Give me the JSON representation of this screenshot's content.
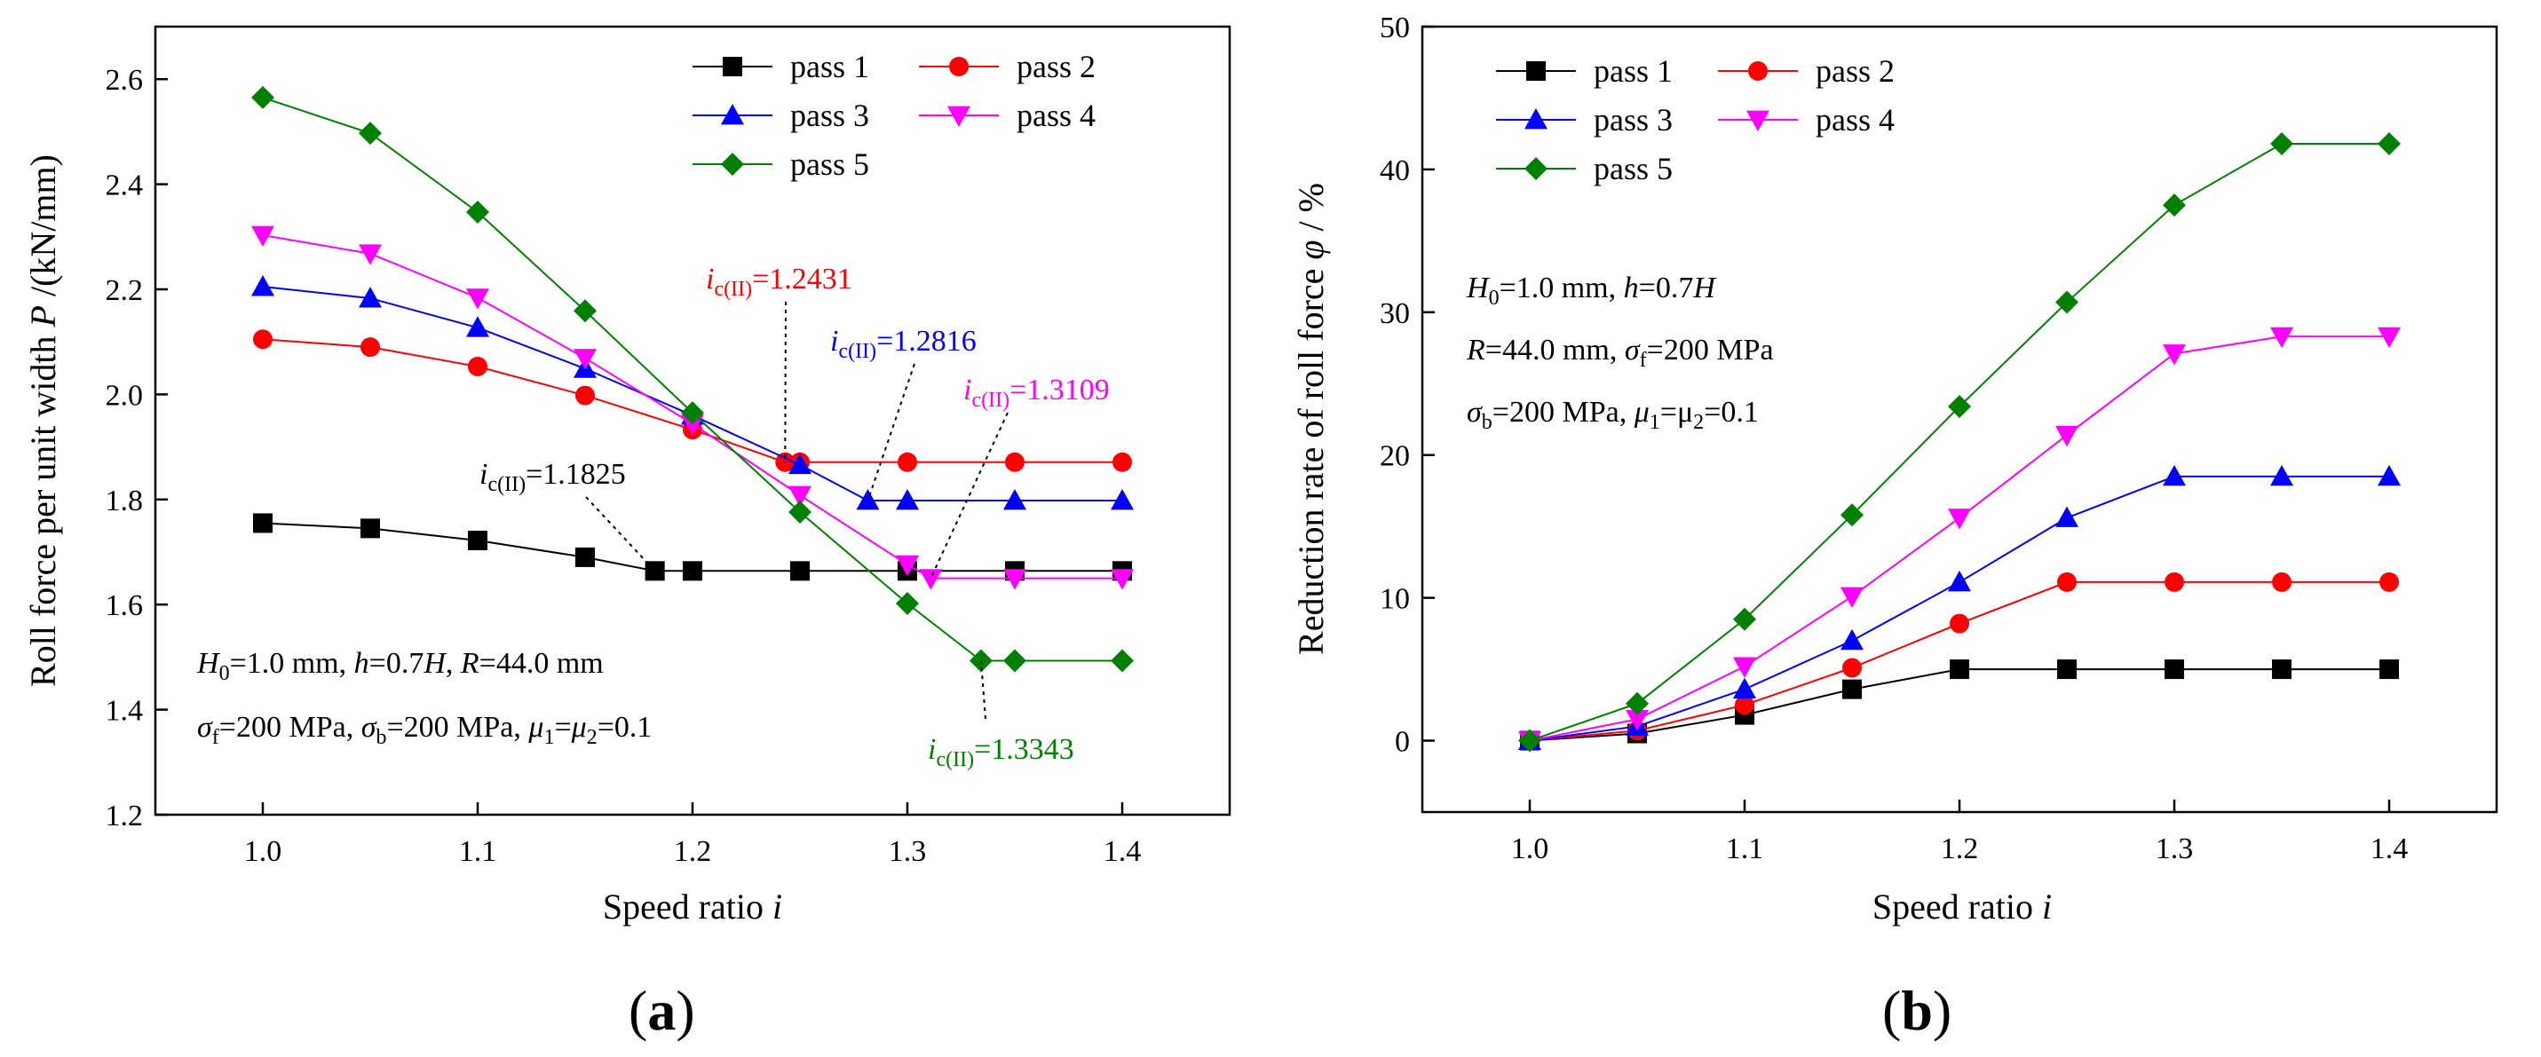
{
  "chart_data": [
    {
      "type": "line",
      "panel_label": "(a)",
      "xlabel": "Speed ratio i",
      "xlabel_text": "Speed ratio ",
      "xlabel_var": "i",
      "ylabel_text": "Roll force per unit width ",
      "ylabel_var": "P",
      "ylabel_unit": " /(kN/mm)",
      "xlim": [
        0.95,
        1.45
      ],
      "ylim": [
        1.2,
        2.7
      ],
      "xticks": [
        1.0,
        1.1,
        1.2,
        1.3,
        1.4
      ],
      "xtick_labels": [
        "1.0",
        "1.1",
        "1.2",
        "1.3",
        "1.4"
      ],
      "yticks": [
        1.2,
        1.4,
        1.6,
        1.8,
        2.0,
        2.2,
        2.4,
        2.6
      ],
      "ytick_labels": [
        "1.2",
        "1.4",
        "1.6",
        "1.8",
        "2.0",
        "2.2",
        "2.4",
        "2.6"
      ],
      "legend_position": "top-right",
      "grid": false,
      "series": [
        {
          "name": "pass 1",
          "color": "#000000",
          "marker": "square",
          "x": [
            1.0,
            1.05,
            1.1,
            1.15,
            1.1825,
            1.2,
            1.25,
            1.3,
            1.35,
            1.4
          ],
          "y": [
            1.755,
            1.745,
            1.722,
            1.69,
            1.664,
            1.664,
            1.664,
            1.664,
            1.664,
            1.664
          ]
        },
        {
          "name": "pass 2",
          "color": "#ff0000",
          "marker": "circle",
          "x": [
            1.0,
            1.05,
            1.1,
            1.15,
            1.2,
            1.2431,
            1.25,
            1.3,
            1.35,
            1.4
          ],
          "y": [
            2.105,
            2.09,
            2.053,
            1.998,
            1.933,
            1.871,
            1.871,
            1.871,
            1.871,
            1.871
          ]
        },
        {
          "name": "pass 3",
          "color": "#0000ff",
          "marker": "triangle-up",
          "x": [
            1.0,
            1.05,
            1.1,
            1.15,
            1.2,
            1.25,
            1.2816,
            1.3,
            1.35,
            1.4
          ],
          "y": [
            2.205,
            2.183,
            2.127,
            2.049,
            1.96,
            1.866,
            1.798,
            1.798,
            1.798,
            1.798
          ]
        },
        {
          "name": "pass 4",
          "color": "#ff00ff",
          "marker": "triangle-down",
          "x": [
            1.0,
            1.05,
            1.1,
            1.15,
            1.2,
            1.25,
            1.3,
            1.3109,
            1.35,
            1.4
          ],
          "y": [
            2.303,
            2.268,
            2.184,
            2.069,
            1.944,
            1.808,
            1.676,
            1.65,
            1.65,
            1.65
          ]
        },
        {
          "name": "pass 5",
          "color": "#008000",
          "marker": "diamond",
          "x": [
            1.0,
            1.05,
            1.1,
            1.15,
            1.2,
            1.25,
            1.3,
            1.3343,
            1.35,
            1.4
          ],
          "y": [
            2.565,
            2.497,
            2.347,
            2.159,
            1.965,
            1.776,
            1.602,
            1.493,
            1.493,
            1.493
          ]
        }
      ],
      "annotations": [
        {
          "var": "i",
          "sub": "c(II)",
          "value": "=1.1825",
          "color": "#000000",
          "target_x": 1.1825,
          "target_y": 1.664
        },
        {
          "var": "i",
          "sub": "c(II)",
          "value": "=1.2431",
          "color": "#ff0000",
          "target_x": 1.2431,
          "target_y": 1.871
        },
        {
          "var": "i",
          "sub": "c(II)",
          "value": "=1.2816",
          "color": "#0000ff",
          "target_x": 1.2816,
          "target_y": 1.798
        },
        {
          "var": "i",
          "sub": "c(II)",
          "value": "=1.3109",
          "color": "#ff00ff",
          "target_x": 1.3109,
          "target_y": 1.65
        },
        {
          "var": "i",
          "sub": "c(II)",
          "value": "=1.3343",
          "color": "#008000",
          "target_x": 1.3343,
          "target_y": 1.493
        }
      ],
      "conditions": [
        "H0=1.0 mm, h=0.7H, R=44.0 mm",
        "σf=200 MPa, σb=200 MPa, μ1=μ2=0.1"
      ]
    },
    {
      "type": "line",
      "panel_label": "(b)",
      "xlabel": "Speed ratio i",
      "xlabel_text": "Speed ratio ",
      "xlabel_var": "i",
      "ylabel_text": "Reduction rate of roll force ",
      "ylabel_var": "φ",
      "ylabel_unit": " / %",
      "xlim": [
        0.95,
        1.45
      ],
      "ylim": [
        -5,
        50
      ],
      "xticks": [
        1.0,
        1.1,
        1.2,
        1.3,
        1.4
      ],
      "xtick_labels": [
        "1.0",
        "1.1",
        "1.2",
        "1.3",
        "1.4"
      ],
      "yticks": [
        0,
        10,
        20,
        30,
        40,
        50
      ],
      "ytick_labels": [
        "0",
        "10",
        "20",
        "30",
        "40",
        "50"
      ],
      "legend_position": "top-left",
      "grid": false,
      "series": [
        {
          "name": "pass 1",
          "color": "#000000",
          "marker": "square",
          "x": [
            1.0,
            1.05,
            1.1,
            1.15,
            1.2,
            1.25,
            1.3,
            1.35,
            1.4
          ],
          "y": [
            0,
            0.5,
            1.8,
            3.6,
            5.0,
            5.0,
            5.0,
            5.0,
            5.0
          ]
        },
        {
          "name": "pass 2",
          "color": "#ff0000",
          "marker": "circle",
          "x": [
            1.0,
            1.05,
            1.1,
            1.15,
            1.2,
            1.25,
            1.3,
            1.35,
            1.4
          ],
          "y": [
            0,
            0.7,
            2.5,
            5.1,
            8.2,
            11.1,
            11.1,
            11.1,
            11.1
          ]
        },
        {
          "name": "pass 3",
          "color": "#0000ff",
          "marker": "triangle-up",
          "x": [
            1.0,
            1.05,
            1.1,
            1.15,
            1.2,
            1.25,
            1.3,
            1.35,
            1.4
          ],
          "y": [
            0,
            1.0,
            3.6,
            7.0,
            11.1,
            15.6,
            18.5,
            18.5,
            18.5
          ]
        },
        {
          "name": "pass 4",
          "color": "#ff00ff",
          "marker": "triangle-down",
          "x": [
            1.0,
            1.05,
            1.1,
            1.15,
            1.2,
            1.25,
            1.3,
            1.35,
            1.4
          ],
          "y": [
            0,
            1.5,
            5.2,
            10.1,
            15.6,
            21.4,
            27.1,
            28.3,
            28.3
          ]
        },
        {
          "name": "pass 5",
          "color": "#008000",
          "marker": "diamond",
          "x": [
            1.0,
            1.05,
            1.1,
            1.15,
            1.2,
            1.25,
            1.3,
            1.35,
            1.4
          ],
          "y": [
            0,
            2.6,
            8.5,
            15.8,
            23.4,
            30.7,
            37.5,
            41.8,
            41.8
          ]
        }
      ],
      "conditions": [
        "H0=1.0 mm, h=0.7H",
        "R=44.0 mm, σf=200 MPa",
        "σb=200 MPa, μ1=μ2=0.1"
      ]
    }
  ]
}
